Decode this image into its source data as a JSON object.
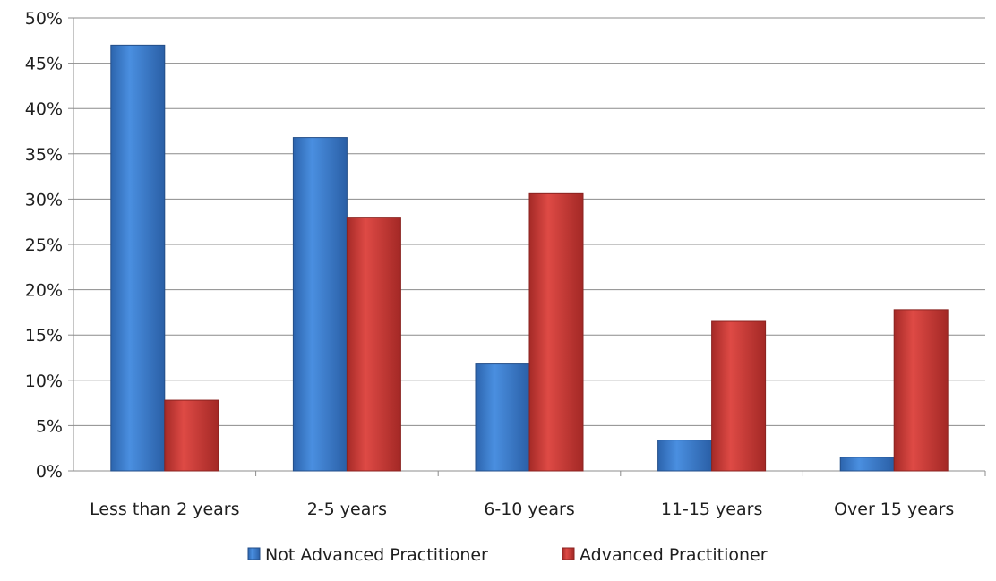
{
  "chart_data": {
    "type": "bar",
    "title": "",
    "xlabel": "",
    "ylabel": "",
    "ylim": [
      0,
      50
    ],
    "y_tick_step": 5,
    "y_tick_labels": [
      "0%",
      "5%",
      "10%",
      "15%",
      "20%",
      "25%",
      "30%",
      "35%",
      "40%",
      "45%",
      "50%"
    ],
    "grid": true,
    "legend_position": "bottom",
    "categories": [
      "Less than 2 years",
      "2-5 years",
      "6-10 years",
      "11-15 years",
      "Over 15 years"
    ],
    "series": [
      {
        "name": "Not Advanced Practitioner",
        "color": "#3c7fd0",
        "values": [
          47,
          36.8,
          11.8,
          3.4,
          1.5
        ]
      },
      {
        "name": "Advanced Practitioner",
        "color": "#cc3a36",
        "values": [
          7.8,
          28,
          30.6,
          16.5,
          17.8
        ]
      }
    ]
  }
}
